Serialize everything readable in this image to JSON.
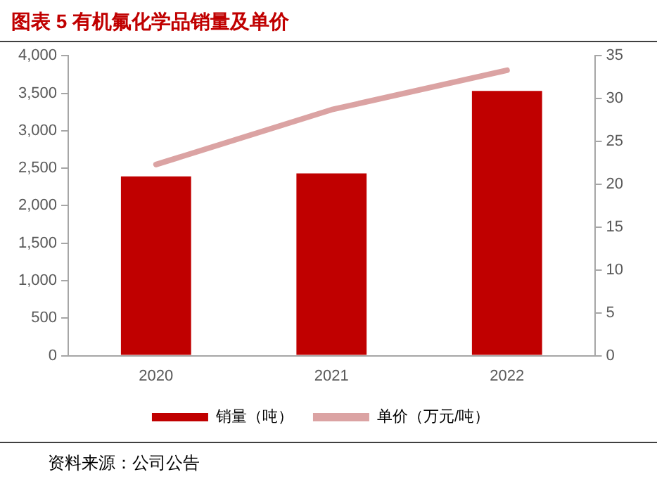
{
  "chart_data": {
    "type": "bar",
    "title": "图表 5 有机氟化学品销量及单价",
    "categories": [
      "2020",
      "2021",
      "2022"
    ],
    "series": [
      {
        "name": "销量（吨）",
        "color": "#c00000",
        "values": [
          2390,
          2430,
          3530
        ]
      },
      {
        "name": "单价（万元/吨）",
        "type": "line",
        "axis": "y2",
        "color": "#dba3a3",
        "values": [
          22.3,
          28.7,
          33.3
        ]
      }
    ],
    "ylim": [
      0,
      4000
    ],
    "yticks": [
      {
        "value": 0,
        "label": "0"
      },
      {
        "value": 500,
        "label": "500"
      },
      {
        "value": 1000,
        "label": "1,000"
      },
      {
        "value": 1500,
        "label": "1,500"
      },
      {
        "value": 2000,
        "label": "2,000"
      },
      {
        "value": 2500,
        "label": "2,500"
      },
      {
        "value": 3000,
        "label": "3,000"
      },
      {
        "value": 3500,
        "label": "3,500"
      },
      {
        "value": 4000,
        "label": "4,000"
      }
    ],
    "y2lim": [
      0,
      35
    ],
    "y2ticks": [
      0,
      5,
      10,
      15,
      20,
      25,
      30,
      35
    ],
    "grid": false,
    "legend": "bottom",
    "marker": "none",
    "annotations": [
      "资料来源：公司公告"
    ]
  }
}
